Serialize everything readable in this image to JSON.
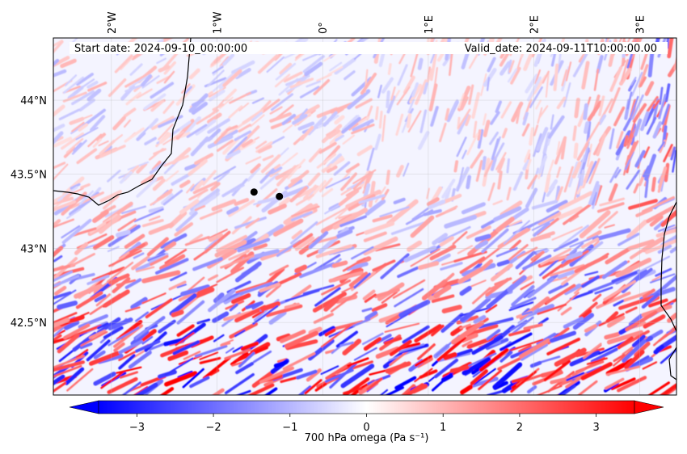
{
  "map": {
    "start_date": "Start date: 2024-09-10_00:00:00",
    "valid_date": "Valid_date: 2024-09-11T10:00:00.00",
    "extent": {
      "lon_min": -2.55,
      "lon_max": 3.35,
      "lat_min": 42.01,
      "lat_max": 44.42
    },
    "lon_ticks": [
      {
        "value": -2,
        "label": "2°W"
      },
      {
        "value": -1,
        "label": "1°W"
      },
      {
        "value": 0,
        "label": "0°"
      },
      {
        "value": 1,
        "label": "1°E"
      },
      {
        "value": 2,
        "label": "2°E"
      },
      {
        "value": 3,
        "label": "3°E"
      }
    ],
    "lat_ticks": [
      {
        "value": 44,
        "label": "44°N"
      },
      {
        "value": 43.5,
        "label": "43.5°N"
      },
      {
        "value": 43,
        "label": "43°N"
      },
      {
        "value": 42.5,
        "label": "42.5°N"
      }
    ],
    "markers": [
      {
        "name": "point-1",
        "lon": -0.65,
        "lat": 43.38,
        "color": "#000000"
      },
      {
        "name": "point-2",
        "lon": -0.41,
        "lat": 43.35,
        "color": "#000000"
      }
    ],
    "field": "700 hPa vertical velocity (omega), fine-scale banded pattern, strongest bands south of 43°N",
    "coast_color": "#000000"
  },
  "colorbar": {
    "label": "700 hPa omega (Pa s⁻¹)",
    "min": -3.5,
    "max": 3.5,
    "cmap": "bwr",
    "extend": "both",
    "ticks": [
      {
        "value": -3,
        "label": "−3"
      },
      {
        "value": -2,
        "label": "−2"
      },
      {
        "value": -1,
        "label": "−1"
      },
      {
        "value": 0,
        "label": "0"
      },
      {
        "value": 1,
        "label": "1"
      },
      {
        "value": 2,
        "label": "2"
      },
      {
        "value": 3,
        "label": "3"
      }
    ],
    "colors": {
      "low": "#0000ff",
      "mid": "#ffffff",
      "high": "#ff0000"
    }
  }
}
